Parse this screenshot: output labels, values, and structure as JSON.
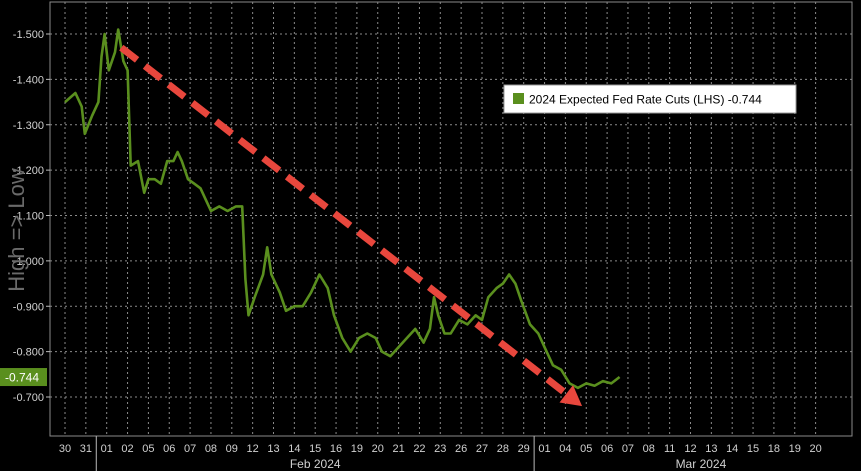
{
  "chart_data": {
    "type": "line",
    "ylabel": "High => Low",
    "yticks": [
      "-1.500",
      "-1.400",
      "-1.300",
      "-1.200",
      "-1.100",
      "-1.000",
      "-0.900",
      "-0.800",
      "-0.700"
    ],
    "ylim": [
      -1.53,
      -0.665
    ],
    "y_inverted": true,
    "xticks": [
      "30",
      "31",
      "01",
      "02",
      "05",
      "06",
      "07",
      "08",
      "09",
      "12",
      "13",
      "14",
      "15",
      "16",
      "19",
      "20",
      "21",
      "22",
      "23",
      "26",
      "27",
      "28",
      "29",
      "01",
      "04",
      "05",
      "06",
      "07",
      "08",
      "11",
      "12",
      "13",
      "14",
      "15",
      "18",
      "19",
      "20"
    ],
    "month_labels": [
      "Feb 2024",
      "Mar 2024"
    ],
    "series": [
      {
        "name": "2024 Expected Fed Rate Cuts (LHS) -0.744",
        "color": "#5a8f1e",
        "points": [
          [
            0,
            -1.35
          ],
          [
            0.5,
            -1.37
          ],
          [
            0.8,
            -1.34
          ],
          [
            0.95,
            -1.28
          ],
          [
            1.3,
            -1.32
          ],
          [
            1.6,
            -1.35
          ],
          [
            1.75,
            -1.45
          ],
          [
            1.9,
            -1.5
          ],
          [
            2.1,
            -1.42
          ],
          [
            2.4,
            -1.46
          ],
          [
            2.55,
            -1.51
          ],
          [
            2.8,
            -1.44
          ],
          [
            3.0,
            -1.42
          ],
          [
            3.15,
            -1.21
          ],
          [
            3.5,
            -1.22
          ],
          [
            3.8,
            -1.15
          ],
          [
            4.0,
            -1.18
          ],
          [
            4.3,
            -1.18
          ],
          [
            4.6,
            -1.17
          ],
          [
            4.9,
            -1.22
          ],
          [
            5.2,
            -1.22
          ],
          [
            5.4,
            -1.24
          ],
          [
            5.6,
            -1.22
          ],
          [
            5.9,
            -1.18
          ],
          [
            6.2,
            -1.17
          ],
          [
            6.5,
            -1.16
          ],
          [
            6.8,
            -1.13
          ],
          [
            7.0,
            -1.11
          ],
          [
            7.4,
            -1.12
          ],
          [
            7.8,
            -1.11
          ],
          [
            8.2,
            -1.12
          ],
          [
            8.5,
            -1.12
          ],
          [
            8.65,
            -0.96
          ],
          [
            8.8,
            -0.88
          ],
          [
            9.1,
            -0.92
          ],
          [
            9.5,
            -0.97
          ],
          [
            9.7,
            -1.03
          ],
          [
            9.9,
            -0.97
          ],
          [
            10.3,
            -0.93
          ],
          [
            10.6,
            -0.89
          ],
          [
            11.0,
            -0.9
          ],
          [
            11.4,
            -0.9
          ],
          [
            11.8,
            -0.93
          ],
          [
            12.2,
            -0.97
          ],
          [
            12.6,
            -0.94
          ],
          [
            12.9,
            -0.88
          ],
          [
            13.3,
            -0.83
          ],
          [
            13.7,
            -0.8
          ],
          [
            14.1,
            -0.83
          ],
          [
            14.5,
            -0.84
          ],
          [
            14.9,
            -0.83
          ],
          [
            15.2,
            -0.8
          ],
          [
            15.6,
            -0.79
          ],
          [
            16.0,
            -0.81
          ],
          [
            16.4,
            -0.83
          ],
          [
            16.8,
            -0.85
          ],
          [
            17.2,
            -0.82
          ],
          [
            17.5,
            -0.85
          ],
          [
            17.7,
            -0.92
          ],
          [
            17.9,
            -0.88
          ],
          [
            18.2,
            -0.84
          ],
          [
            18.5,
            -0.84
          ],
          [
            18.9,
            -0.87
          ],
          [
            19.3,
            -0.86
          ],
          [
            19.7,
            -0.88
          ],
          [
            20.0,
            -0.87
          ],
          [
            20.3,
            -0.92
          ],
          [
            20.7,
            -0.94
          ],
          [
            21.0,
            -0.95
          ],
          [
            21.3,
            -0.97
          ],
          [
            21.6,
            -0.95
          ],
          [
            21.9,
            -0.91
          ],
          [
            22.3,
            -0.86
          ],
          [
            22.7,
            -0.84
          ],
          [
            23.0,
            -0.81
          ],
          [
            23.4,
            -0.77
          ],
          [
            23.8,
            -0.76
          ],
          [
            24.2,
            -0.73
          ],
          [
            24.6,
            -0.72
          ],
          [
            25.0,
            -0.73
          ],
          [
            25.4,
            -0.725
          ],
          [
            25.8,
            -0.735
          ],
          [
            26.2,
            -0.73
          ],
          [
            26.6,
            -0.744
          ]
        ]
      }
    ],
    "trend_arrow": {
      "from": [
        2.7,
        -1.47
      ],
      "to": [
        24.8,
        -0.68
      ],
      "color": "#e8473d"
    },
    "current_value_label": "-0.744",
    "legend": {
      "text": "2024 Expected Fed Rate Cuts (LHS) -0.744",
      "placement": "top-right",
      "swatch_color": "#5a8f1e"
    },
    "grid": true
  }
}
